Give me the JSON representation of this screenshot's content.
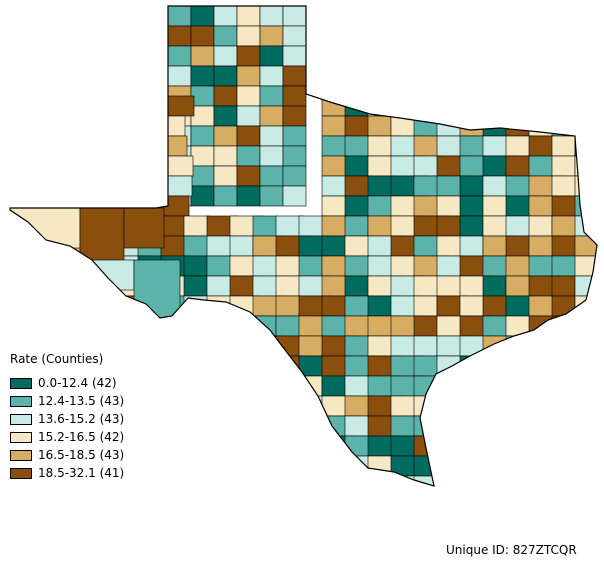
{
  "legend": {
    "title": "Rate (Counties)",
    "items": [
      {
        "label": "0.0-12.4 (42)",
        "color": "#006b5f"
      },
      {
        "label": "12.4-13.5 (43)",
        "color": "#5bb3aa"
      },
      {
        "label": "13.6-15.2 (43)",
        "color": "#c8ebe5"
      },
      {
        "label": "15.2-16.5 (42)",
        "color": "#f6e8c3"
      },
      {
        "label": "16.5-18.5 (43)",
        "color": "#d6ad63"
      },
      {
        "label": "18.5-32.1 (41)",
        "color": "#8b4f0d"
      }
    ]
  },
  "unique_id": "Unique ID: 827ZTCQR"
}
